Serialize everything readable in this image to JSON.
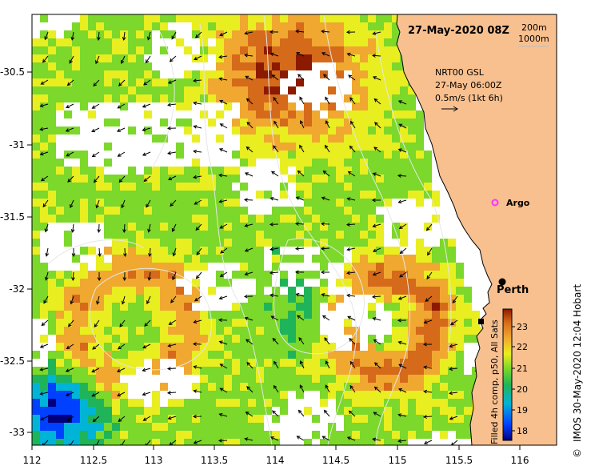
{
  "map": {
    "title": "27-May-2020 08Z",
    "depth_legend": [
      "200m",
      "1000m"
    ],
    "current_legend": {
      "line1": "NRT00 GSL",
      "line2": "27-May 06:00Z",
      "line3": "0.5m/s (1kt 6h)"
    },
    "place_labels": {
      "argo": "Argo",
      "perth": "Perth"
    },
    "x_ticks": [
      "112",
      "112.5",
      "113",
      "113.5",
      "114",
      "114.5",
      "115",
      "115.5",
      "116"
    ],
    "y_ticks": [
      "-30.5",
      "-31",
      "-31.5",
      "-32",
      "-32.5",
      "-33"
    ],
    "colorbar": {
      "label": "Filled 4h comp, p50, All Sats",
      "ticks": [
        "23",
        "22",
        "21",
        "20",
        "19",
        "18"
      ]
    },
    "side_caption": "IMOS 30-May-2020 12:04 Hobart",
    "copyright": "©",
    "colors": {
      "land": "#f9c08f",
      "cold": "#000080",
      "warm": "#8b1a00",
      "argo": "#ff33ff"
    }
  }
}
